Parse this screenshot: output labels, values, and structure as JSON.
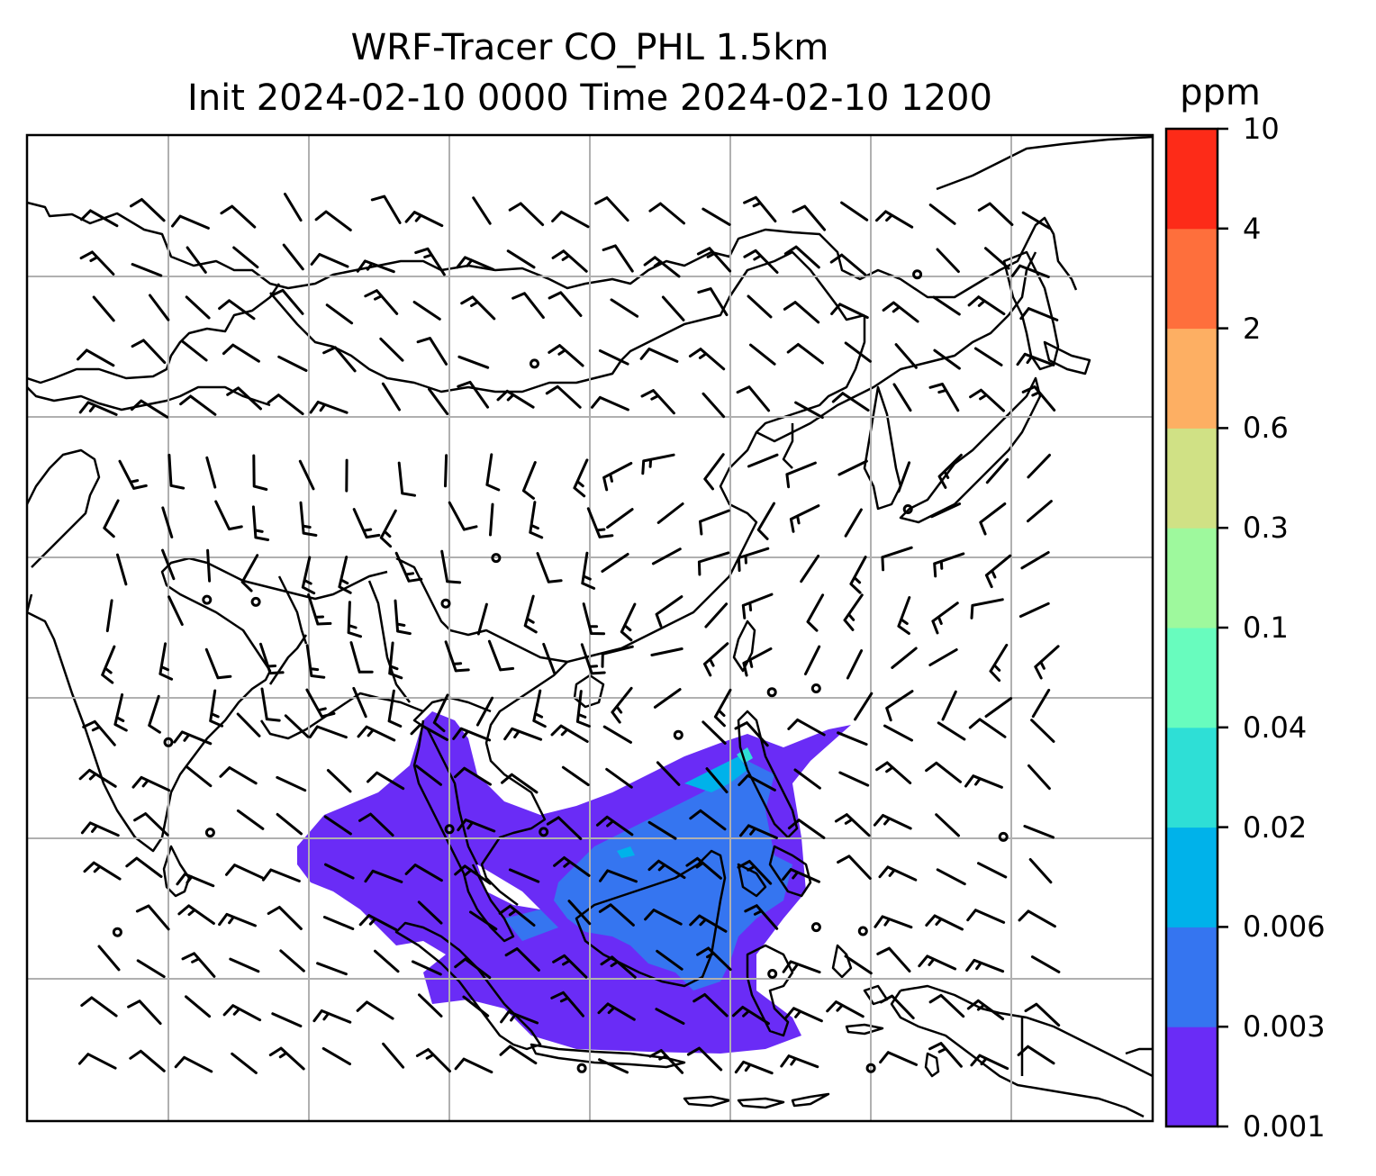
{
  "title": {
    "line1": "WRF-Tracer CO_PHL 1.5km",
    "line2": "Init 2024-02-10 0000 Time 2024-02-10 1200"
  },
  "colorbar": {
    "unit": "ppm",
    "levels": [
      "0.001",
      "0.003",
      "0.006",
      "0.02",
      "0.04",
      "0.1",
      "0.3",
      "0.6",
      "2",
      "4",
      "10"
    ],
    "colors": [
      "#6a2cf6",
      "#3575f0",
      "#00b2ea",
      "#2edfd6",
      "#68fcbe",
      "#9ef99d",
      "#d0e185",
      "#fdaf63",
      "#fe6f3c",
      "#fd2b18"
    ]
  },
  "map": {
    "region": "East / Southeast Asia",
    "field": "CO tracer concentration with wind barbs",
    "plume_source": "Philippines"
  }
}
